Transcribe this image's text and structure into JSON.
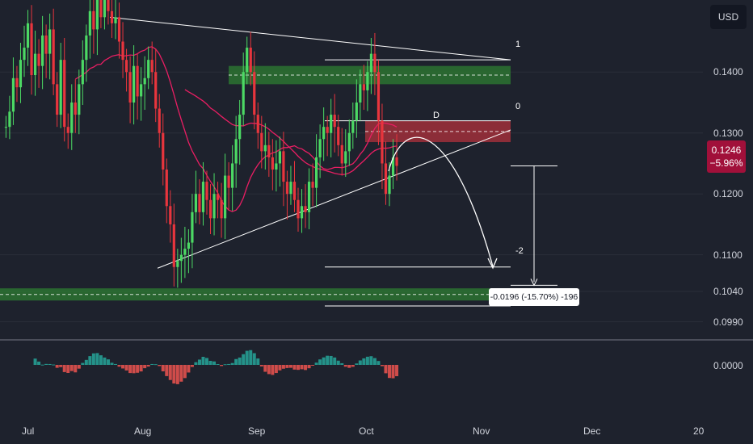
{
  "toolbar": {
    "currency_label": "USD"
  },
  "last_price": {
    "value": "0.1246",
    "change": "−5.96%"
  },
  "colors": {
    "background": "#1e222d",
    "up": "#4cd964",
    "down": "#e8353d",
    "support_zone": "#2e7d32",
    "resistance_zone": "#b2313c",
    "moving_average": "#e91e63",
    "projection": "#ffffff",
    "hist_up": "#26a69a",
    "hist_down": "#ef5350"
  },
  "annotations": {
    "level_1": "1",
    "level_0": "0",
    "level_neg2": "-2",
    "zone_marker": "D",
    "measure": "-0.0196 (-15.70%) -196"
  },
  "chart_data": {
    "type": "candlestick",
    "ylim": [
      0.0975,
      0.1505
    ],
    "price_ticks": [
      "0.1400",
      "0.1300",
      "0.1200",
      "0.1100",
      "0.1040",
      "0.0990"
    ],
    "indicator_ticks": [
      "0.0000"
    ],
    "x_ticks": [
      "Jul",
      "Aug",
      "Sep",
      "Oct",
      "Nov",
      "Dec",
      "20"
    ],
    "x_tick_dates": [
      "2023-07-01",
      "2023-08-01",
      "2023-09-01",
      "2023-10-01",
      "2023-11-01",
      "2023-12-01",
      "2023-12-20"
    ],
    "series": [
      {
        "start_date": "2023-06-26",
        "close": [
          0.131,
          0.1335,
          0.139,
          0.1375,
          0.142,
          0.144,
          0.148,
          0.1395,
          0.143,
          0.141,
          0.146,
          0.143,
          0.147,
          0.138,
          0.133,
          0.142,
          0.131,
          0.13,
          0.135,
          0.133,
          0.138,
          0.142,
          0.146,
          0.15,
          0.147,
          0.152,
          0.149,
          0.152,
          0.15,
          0.148,
          0.149,
          0.145,
          0.142,
          0.14,
          0.135,
          0.141,
          0.136,
          0.138,
          0.139,
          0.142,
          0.14,
          0.134,
          0.13,
          0.124,
          0.118,
          0.115,
          0.108,
          0.109,
          0.11,
          0.111,
          0.112,
          0.117,
          0.12,
          0.117,
          0.122,
          0.119,
          0.116,
          0.12,
          0.119,
          0.116,
          0.123,
          0.121,
          0.125,
          0.129,
          0.133,
          0.14,
          0.144,
          0.14,
          0.133,
          0.13,
          0.127,
          0.128,
          0.126,
          0.124,
          0.125,
          0.127,
          0.122,
          0.12,
          0.122,
          0.119,
          0.116,
          0.118,
          0.117,
          0.122,
          0.121,
          0.126,
          0.129,
          0.131,
          0.13,
          0.133,
          0.131,
          0.128,
          0.125,
          0.127,
          0.13,
          0.132,
          0.135,
          0.138,
          0.137,
          0.14,
          0.143,
          0.14,
          0.132,
          0.125,
          0.12,
          0.123,
          0.126,
          0.1246
        ]
      }
    ],
    "annotations": {
      "support_zone": [
        0.1025,
        0.1045
      ],
      "supply_zone": [
        0.138,
        0.141
      ],
      "resistance_zone": [
        0.1285,
        0.132
      ],
      "level_1": 0.142,
      "level_0": 0.132,
      "level_neg2": 0.108,
      "measured_move": -0.0196,
      "measured_move_percent": -15.7,
      "measured_move_points": -196
    }
  }
}
